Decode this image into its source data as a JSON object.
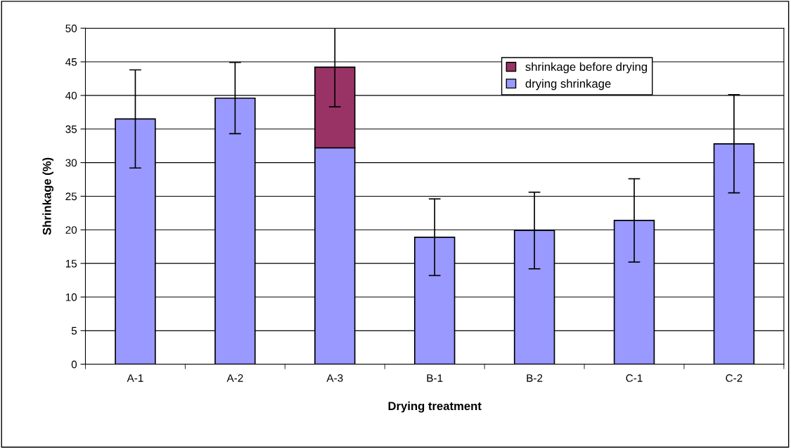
{
  "chart_data": {
    "type": "bar",
    "stacked": true,
    "xlabel": "Drying treatment",
    "ylabel": "Shrinkage (%)",
    "categories": [
      "A-1",
      "A-2",
      "A-3",
      "B-1",
      "B-2",
      "C-1",
      "C-2"
    ],
    "series": [
      {
        "name": "drying shrinkage",
        "color": "#9999ff",
        "values": [
          36.5,
          39.6,
          32.2,
          18.9,
          19.9,
          21.4,
          32.8
        ],
        "errors": [
          7.3,
          5.3,
          null,
          5.7,
          5.7,
          6.2,
          7.3
        ]
      },
      {
        "name": "shrinkage before drying",
        "color": "#993366",
        "values": [
          null,
          null,
          12.0,
          null,
          null,
          null,
          null
        ],
        "errors": [
          null,
          null,
          5.9,
          null,
          null,
          null,
          null
        ]
      }
    ],
    "ylim": [
      0,
      50
    ],
    "yticks": [
      0,
      5,
      10,
      15,
      20,
      25,
      30,
      35,
      40,
      45,
      50
    ],
    "grid": "y",
    "legend": "top right"
  }
}
